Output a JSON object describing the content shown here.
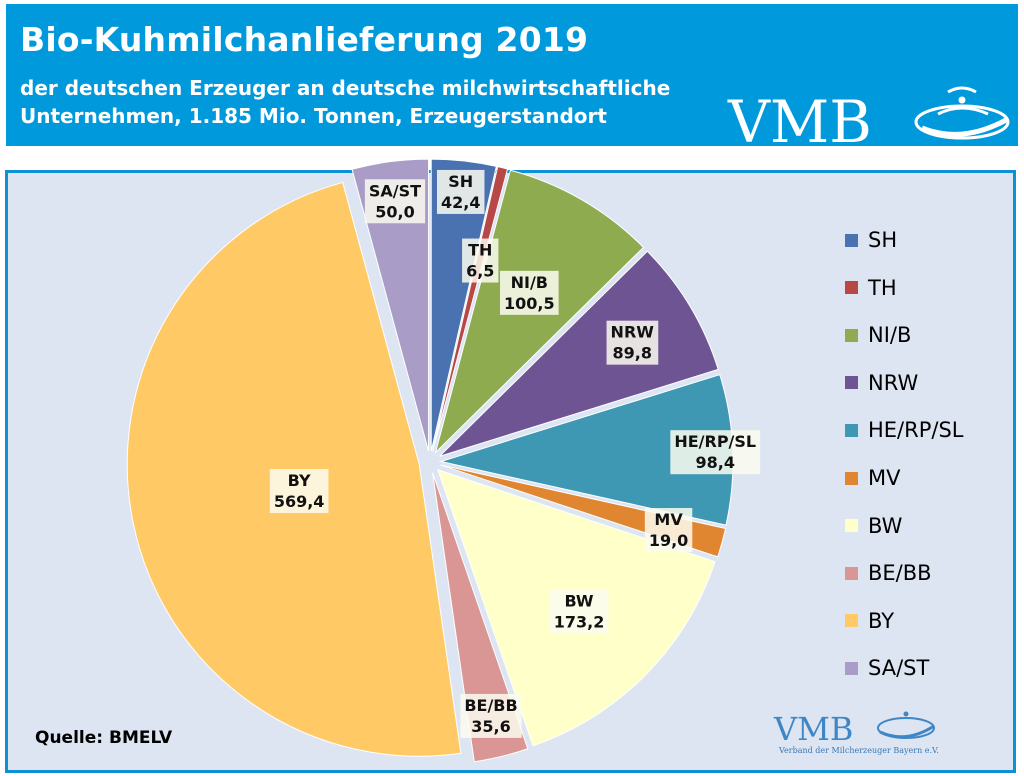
{
  "header": {
    "title": "Bio-Kuhmilchanlieferung 2019",
    "subtitle_line1": "der deutschen  Erzeuger  an deutsche  milchwirtschaftliche",
    "subtitle_line2": "Unternehmen, 1.185 Mio. Tonnen, Erzeugerstandort",
    "logo_text": "VMB"
  },
  "footer": {
    "source": "Quelle:  BMELV",
    "logo_text": "VMB",
    "logo_caption": "Verband der Milcherzeuger Bayern e.V."
  },
  "colors": {
    "header_bg": "#0099dc",
    "panel_bg": "#dce5f1",
    "panel_border": "#0f8fd6"
  },
  "chart_data": {
    "type": "pie",
    "title": "",
    "legend_position": "right",
    "slices": [
      {
        "label": "SH",
        "value": 42.4,
        "display": "42,4",
        "color": "#4a72b0"
      },
      {
        "label": "TH",
        "value": 6.5,
        "display": "6,5",
        "color": "#b84845"
      },
      {
        "label": "NI/B",
        "value": 100.5,
        "display": "100,5",
        "color": "#8eab4f"
      },
      {
        "label": "NRW",
        "value": 89.8,
        "display": "89,8",
        "color": "#6f5493"
      },
      {
        "label": "HE/RP/SL",
        "value": 98.4,
        "display": "98,4",
        "color": "#3e98b4"
      },
      {
        "label": "MV",
        "value": 19.0,
        "display": "19,0",
        "color": "#e08530"
      },
      {
        "label": "BW",
        "value": 173.2,
        "display": "173,2",
        "color": "#ffffca"
      },
      {
        "label": "BE/BB",
        "value": 35.6,
        "display": "35,6",
        "color": "#d99694"
      },
      {
        "label": "BY",
        "value": 569.4,
        "display": "569,4",
        "color": "#ffc966"
      },
      {
        "label": "SA/ST",
        "value": 50.0,
        "display": "50,0",
        "color": "#a99cc6"
      }
    ]
  }
}
